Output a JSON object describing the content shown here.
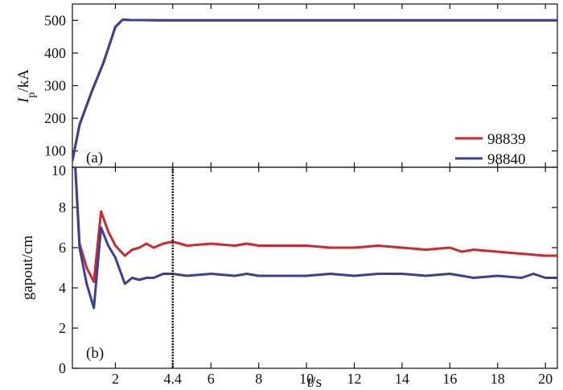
{
  "chart_data": [
    {
      "panel_label": "(a)",
      "type": "line",
      "ylabel": {
        "main": "I",
        "sub": "p",
        "unit": "/kA"
      },
      "ylim": [
        50,
        550
      ],
      "yticks": [
        100,
        200,
        300,
        400,
        500
      ],
      "xlim": [
        0.2,
        20.5
      ],
      "grid": false,
      "legend": {
        "placement": "lower-right"
      },
      "series": [
        {
          "name": "98839",
          "color": "#d6252a",
          "x": [
            0.2,
            0.5,
            1.0,
            1.5,
            2.0,
            2.3,
            2.6,
            4.0,
            6,
            8,
            10,
            12,
            14,
            16,
            18,
            20,
            20.5
          ],
          "y": [
            70,
            180,
            280,
            370,
            480,
            502,
            501,
            500,
            500,
            500,
            500,
            500,
            500,
            500,
            500,
            500,
            500
          ]
        },
        {
          "name": "98840",
          "color": "#3a3f9a",
          "x": [
            0.2,
            0.5,
            1.0,
            1.5,
            2.0,
            2.3,
            2.6,
            4.0,
            6,
            8,
            10,
            12,
            14,
            16,
            18,
            20,
            20.5
          ],
          "y": [
            70,
            180,
            280,
            370,
            480,
            502,
            501,
            500,
            500,
            500,
            500,
            500,
            500,
            500,
            500,
            500,
            500
          ]
        }
      ]
    },
    {
      "panel_label": "(b)",
      "type": "line",
      "ylabel": "gapout/cm",
      "xlabel": {
        "var": "t",
        "unit": "/s"
      },
      "xlim": [
        0.2,
        20.5
      ],
      "ylim": [
        0,
        10
      ],
      "yticks": [
        0,
        2,
        4,
        6,
        8,
        10
      ],
      "xticks": [
        2,
        4.4,
        6,
        8,
        10,
        12,
        14,
        16,
        18,
        20
      ],
      "xtick_labels": [
        "2",
        "4.4",
        "6",
        "8",
        "10",
        "12",
        "14",
        "16",
        "18",
        "20"
      ],
      "grid": false,
      "vline_x": 4.4,
      "series": [
        {
          "name": "98839",
          "color": "#d6252a",
          "x": [
            0.3,
            0.5,
            0.8,
            1.1,
            1.4,
            1.7,
            2.0,
            2.4,
            2.7,
            3.0,
            3.3,
            3.6,
            4.0,
            4.4,
            5.0,
            6.0,
            7.0,
            7.5,
            8.0,
            9.0,
            10.0,
            11.0,
            12.0,
            13.0,
            14.0,
            15.0,
            16.0,
            16.5,
            17.0,
            18.0,
            19.0,
            20.0,
            20.5
          ],
          "y": [
            10.5,
            6.2,
            5.0,
            4.3,
            7.8,
            6.8,
            6.1,
            5.6,
            5.9,
            6.0,
            6.2,
            6.0,
            6.2,
            6.3,
            6.1,
            6.2,
            6.1,
            6.2,
            6.1,
            6.1,
            6.1,
            6.0,
            6.0,
            6.1,
            6.0,
            5.9,
            6.0,
            5.8,
            5.9,
            5.8,
            5.7,
            5.6,
            5.6
          ]
        },
        {
          "name": "98840",
          "color": "#3a3f9a",
          "x": [
            0.3,
            0.5,
            0.8,
            1.1,
            1.4,
            1.7,
            2.0,
            2.4,
            2.7,
            3.0,
            3.3,
            3.6,
            4.0,
            4.4,
            5.0,
            6.0,
            7.0,
            7.5,
            8.0,
            9.0,
            10.0,
            11.0,
            12.0,
            13.0,
            14.0,
            15.0,
            16.0,
            16.5,
            17.0,
            18.0,
            19.0,
            19.5,
            20.0,
            20.5
          ],
          "y": [
            10.5,
            6.0,
            4.2,
            3.0,
            7.0,
            6.1,
            5.5,
            4.2,
            4.5,
            4.4,
            4.5,
            4.5,
            4.7,
            4.7,
            4.6,
            4.7,
            4.6,
            4.7,
            4.6,
            4.6,
            4.6,
            4.7,
            4.6,
            4.7,
            4.7,
            4.6,
            4.7,
            4.6,
            4.5,
            4.6,
            4.5,
            4.7,
            4.5,
            4.5
          ]
        }
      ]
    }
  ]
}
